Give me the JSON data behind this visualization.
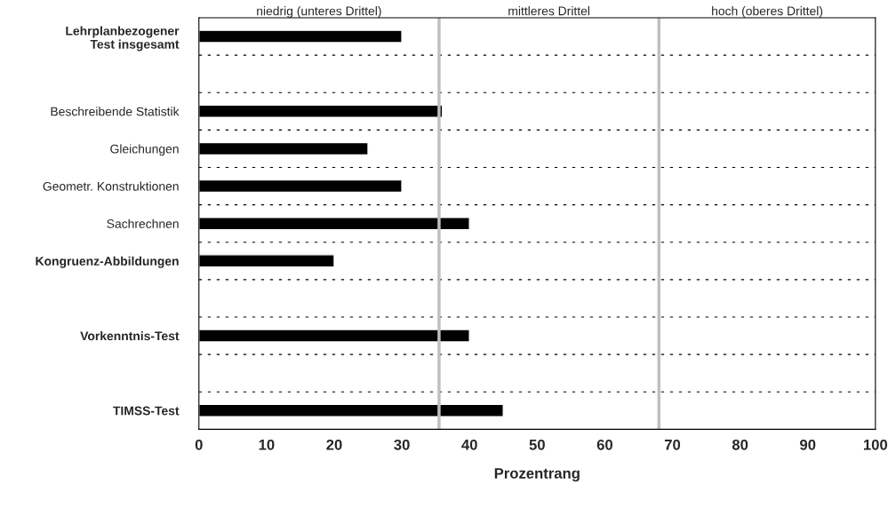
{
  "chart_data": {
    "type": "bar",
    "orientation": "horizontal",
    "xlabel": "Prozentrang",
    "categories": [
      "Lehrplanbezogener\nTest insgesamt",
      null,
      "Beschreibende Statistik",
      "Gleichungen",
      "Geometr. Konstruktionen",
      "Sachrechnen",
      "Kongruenz-Abbildungen",
      null,
      "Vorkenntnis-Test",
      null,
      "TIMSS-Test"
    ],
    "values": [
      30,
      null,
      36,
      25,
      30,
      40,
      20,
      null,
      40,
      null,
      45
    ],
    "color": "#000000",
    "xlim": [
      0,
      100
    ],
    "xticks": [
      0,
      10,
      20,
      30,
      40,
      50,
      60,
      70,
      80,
      90,
      100
    ],
    "ref_lines": [
      {
        "axis": "x",
        "value": 35.5,
        "color": "#c0c0c0"
      },
      {
        "axis": "x",
        "value": 68,
        "color": "#c0c0c0"
      }
    ],
    "annotations": [
      "niedrig (unteres Drittel)",
      "mittleres Drittel",
      "hoch (oberes Drittel)"
    ],
    "grid": "y",
    "line_style": "dotted",
    "legend": false
  }
}
